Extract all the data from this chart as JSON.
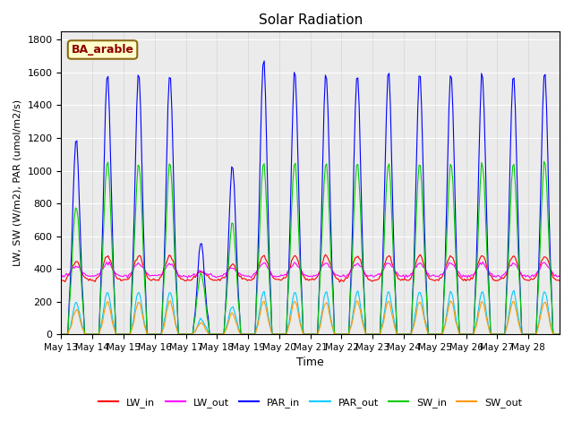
{
  "title": "Solar Radiation",
  "xlabel": "Time",
  "ylabel": "LW, SW (W/m2), PAR (umol/m2/s)",
  "annotation": "BA_arable",
  "ylim": [
    0,
    1850
  ],
  "yticks": [
    0,
    200,
    400,
    600,
    800,
    1000,
    1200,
    1400,
    1600,
    1800
  ],
  "x_tick_labels": [
    "May 13",
    "May 14",
    "May 15",
    "May 16",
    "May 17",
    "May 18",
    "May 19",
    "May 20",
    "May 21",
    "May 22",
    "May 23",
    "May 24",
    "May 25",
    "May 26",
    "May 27",
    "May 28"
  ],
  "colors": {
    "LW_in": "#ff0000",
    "LW_out": "#ff00ff",
    "PAR_in": "#0000ff",
    "PAR_out": "#00ccff",
    "SW_in": "#00cc00",
    "SW_out": "#ff9900"
  },
  "plot_bg": "#ebebeb",
  "legend_entries": [
    "LW_in",
    "LW_out",
    "PAR_in",
    "PAR_out",
    "SW_in",
    "SW_out"
  ]
}
